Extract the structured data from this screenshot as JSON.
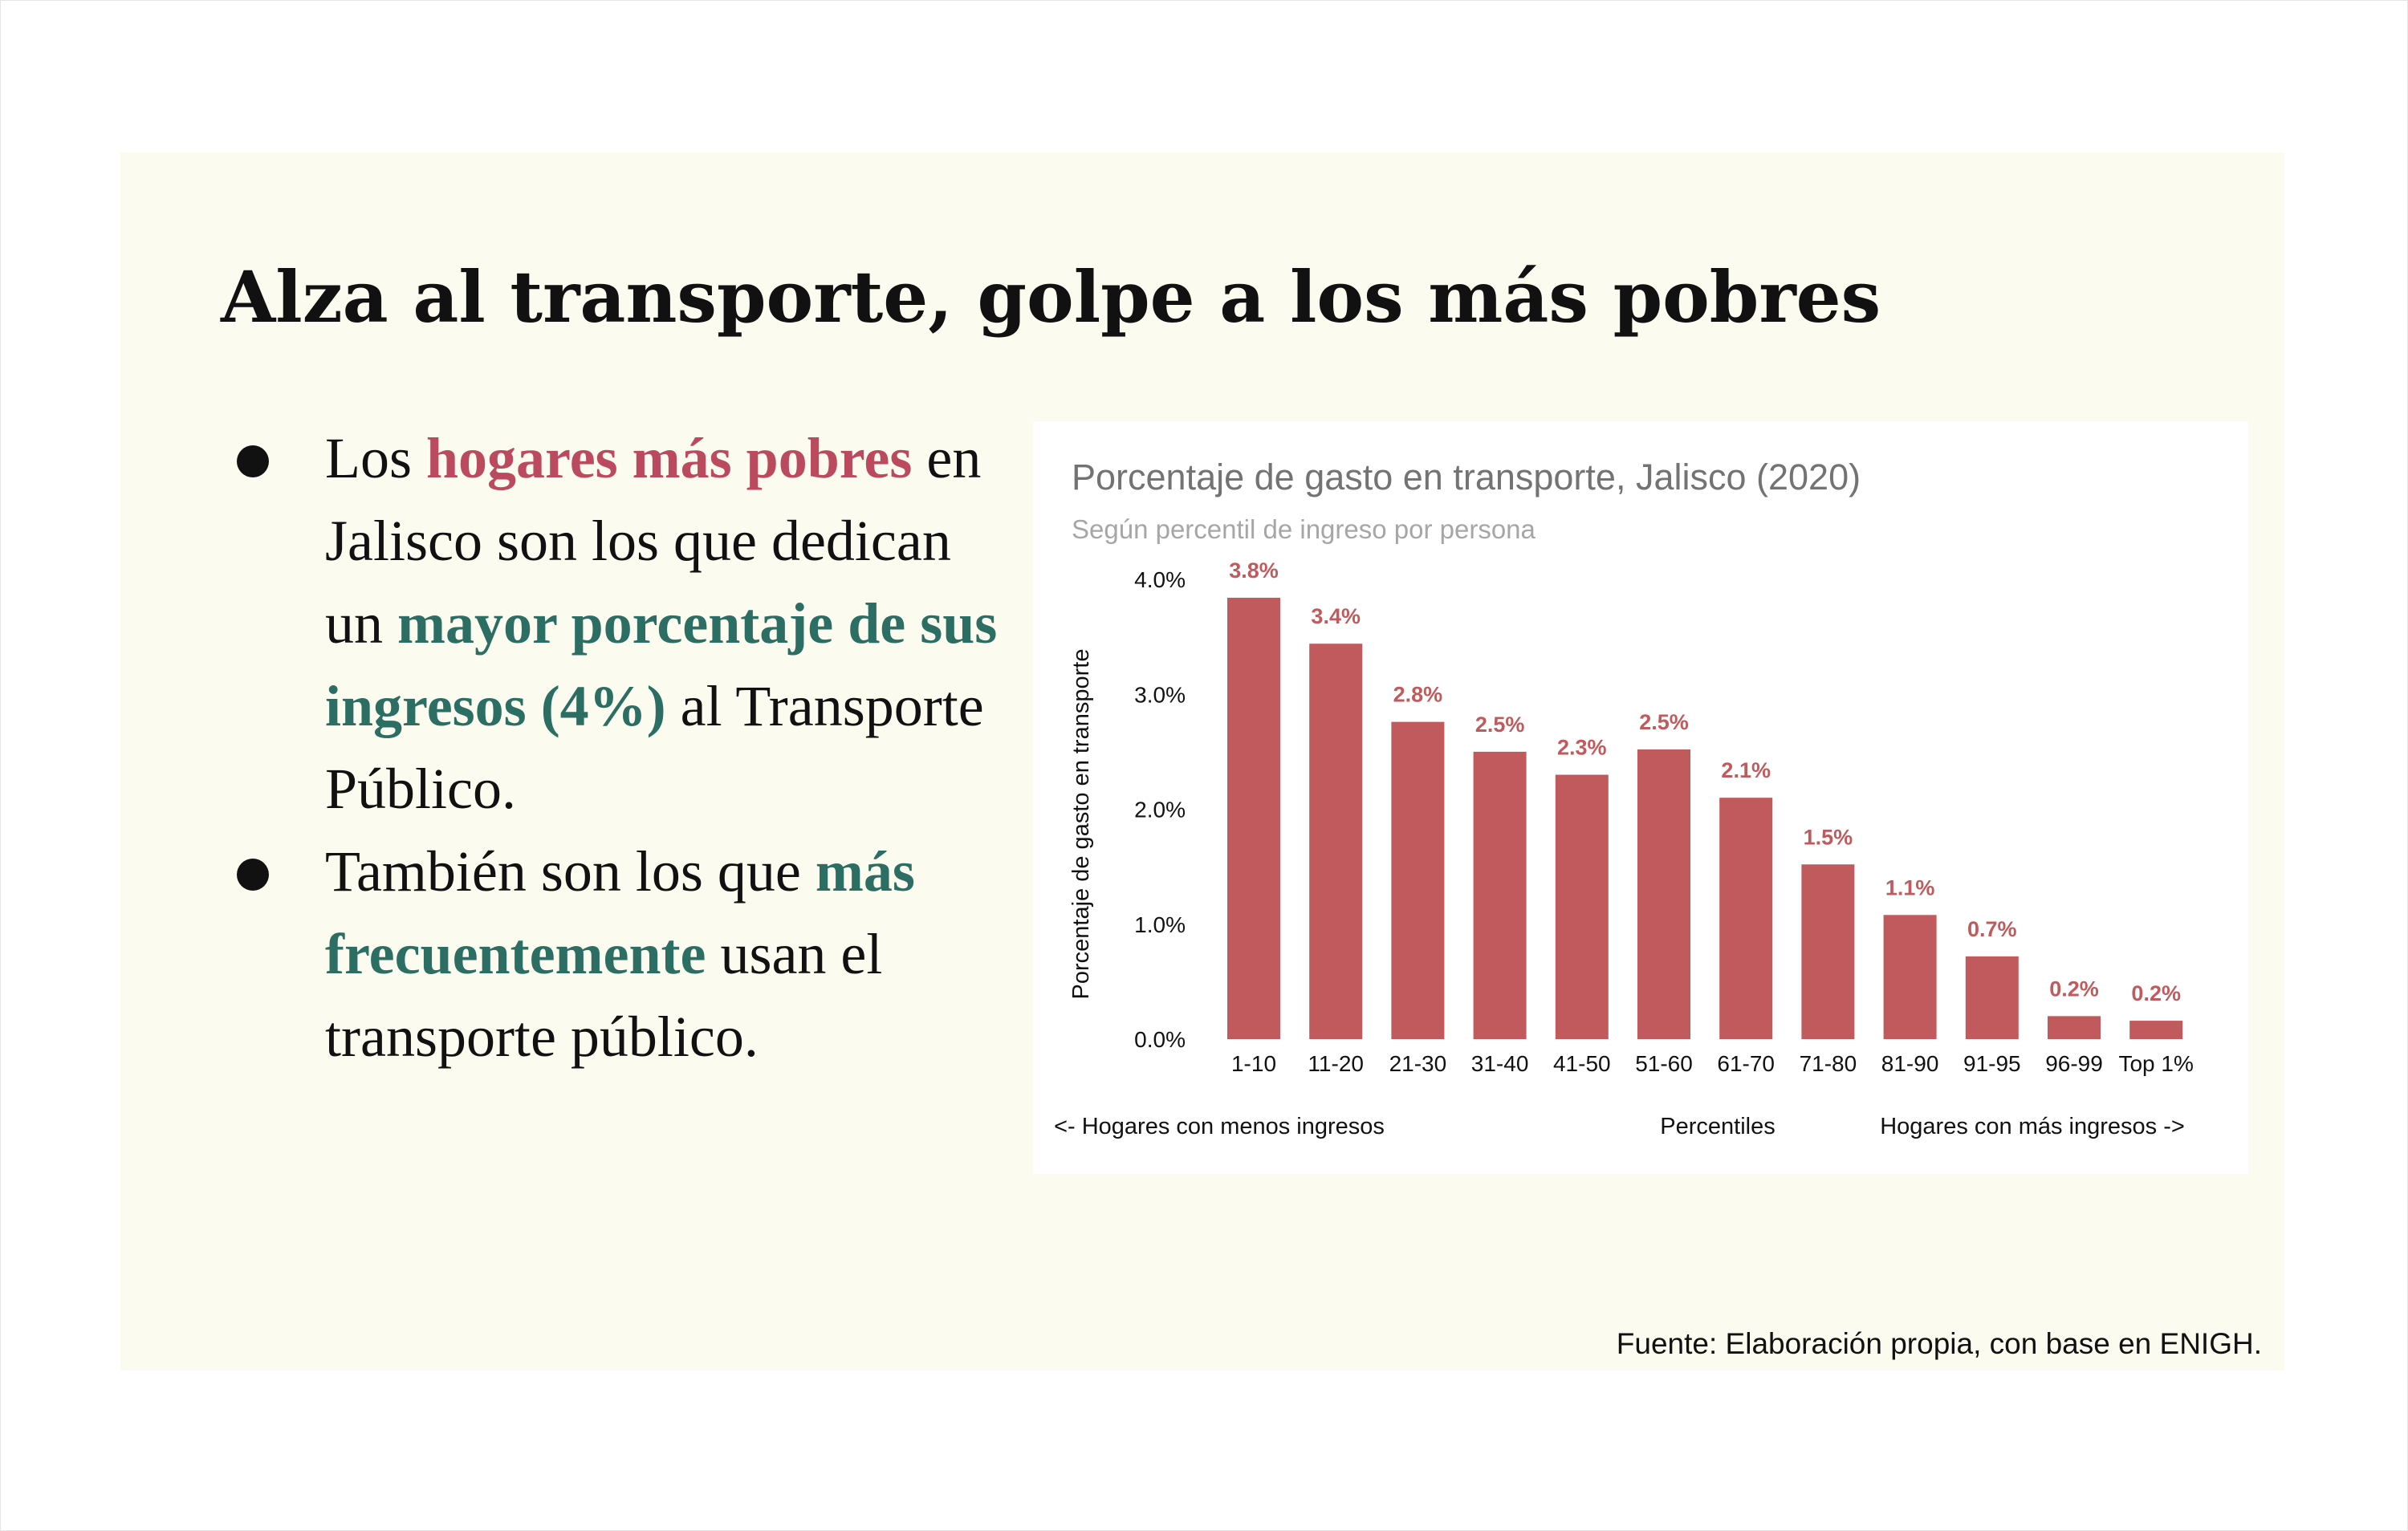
{
  "slide": {
    "title": "Alza al transporte, golpe a los más pobres",
    "bullets": [
      {
        "segments": [
          {
            "text": "Los ",
            "style": "plain"
          },
          {
            "text": "hogares más pobres",
            "style": "red"
          },
          {
            "text": " en Jalisco son los que dedican un ",
            "style": "plain"
          },
          {
            "text": "mayor porcentaje de sus ingresos (4%)",
            "style": "green"
          },
          {
            "text": " al Transporte Público.",
            "style": "plain"
          }
        ]
      },
      {
        "segments": [
          {
            "text": "También son los que ",
            "style": "plain"
          },
          {
            "text": "más frecuentemente ",
            "style": "green"
          },
          {
            "text": " usan el transporte público.",
            "style": "plain"
          }
        ]
      }
    ],
    "source": "Fuente: Elaboración propia, con base en ENIGH.",
    "colors": {
      "red_highlight": "#bc4a5e",
      "green_highlight": "#2c6e63",
      "panel_background": "#fcfbf0",
      "bar": "#c05a5c"
    }
  },
  "chart_data": {
    "type": "bar",
    "title": "Porcentaje de gasto en transporte, Jalisco (2020)",
    "subtitle": "Según percentil de ingreso por persona",
    "ylabel": "Porcentaje de gasto en transporte",
    "xlabel": "Percentiles",
    "x_annotation_left": "<- Hogares con menos ingresos",
    "x_annotation_right": "Hogares con más ingresos ->",
    "categories": [
      "1-10",
      "11-20",
      "21-30",
      "31-40",
      "41-50",
      "51-60",
      "61-70",
      "71-80",
      "81-90",
      "91-95",
      "96-99",
      "Top 1%"
    ],
    "values": [
      3.84,
      3.44,
      2.76,
      2.5,
      2.3,
      2.52,
      2.1,
      1.52,
      1.08,
      0.72,
      0.2,
      0.16
    ],
    "value_labels": [
      "3.8%",
      "3.4%",
      "2.8%",
      "2.5%",
      "2.3%",
      "2.5%",
      "2.1%",
      "1.5%",
      "1.1%",
      "0.7%",
      "0.2%",
      "0.2%"
    ],
    "ylim": [
      0,
      4
    ],
    "yticks": [
      0,
      1,
      2,
      3,
      4
    ],
    "ytick_labels": [
      "0.0%",
      "1.0%",
      "2.0%",
      "3.0%",
      "4.0%"
    ],
    "grid": false,
    "legend": "none",
    "bar_color": "#c05a5c",
    "label_color": "#c05a5c"
  }
}
